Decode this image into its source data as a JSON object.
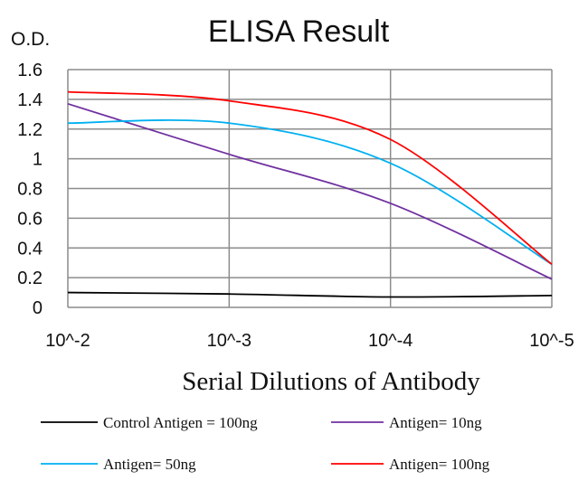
{
  "chart_data": {
    "type": "line",
    "title": "ELISA Result",
    "ylabel": "O.D.",
    "xlabel": "Serial Dilutions  of Antibody",
    "categories": [
      "10^-2",
      "10^-3",
      "10^-4",
      "10^-5"
    ],
    "y_ticks": [
      "0",
      "0.2",
      "0.4",
      "0.6",
      "0.8",
      "1",
      "1.2",
      "1.4",
      "1.6"
    ],
    "ylim": [
      0,
      1.6
    ],
    "grid": true,
    "legend_position": "bottom",
    "series": [
      {
        "name": "Control Antigen = 100ng",
        "color": "#000000",
        "values": [
          0.1,
          0.09,
          0.07,
          0.08
        ]
      },
      {
        "name": "Antigen= 10ng",
        "color": "#7030a0",
        "values": [
          1.37,
          1.03,
          0.7,
          0.19
        ]
      },
      {
        "name": "Antigen= 50ng",
        "color": "#00b0f0",
        "values": [
          1.24,
          1.24,
          0.97,
          0.29
        ]
      },
      {
        "name": "Antigen= 100ng",
        "color": "#ff0000",
        "values": [
          1.45,
          1.39,
          1.13,
          0.29
        ]
      }
    ]
  }
}
